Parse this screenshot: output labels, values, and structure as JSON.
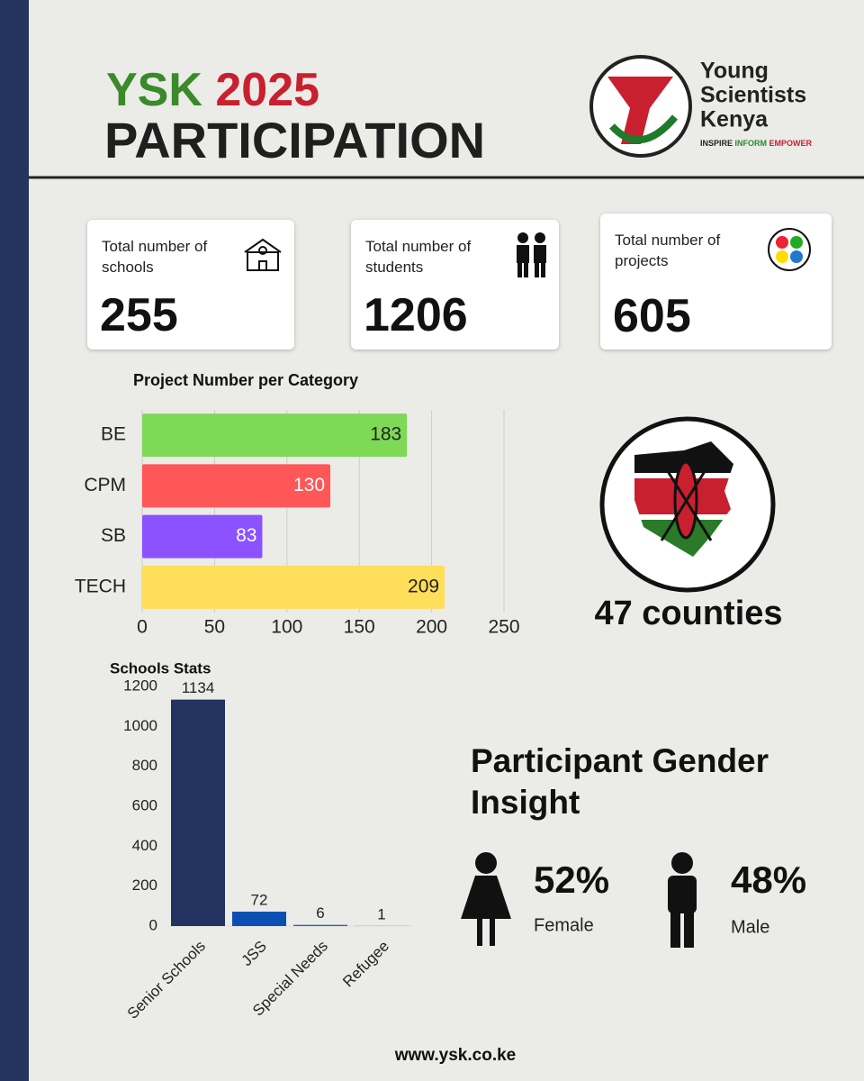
{
  "header": {
    "title_a": "YSK",
    "title_b": "2025",
    "title_c": "PARTICIPATION",
    "logo_line1": "Young",
    "logo_line2": "Scientists",
    "logo_line3": "Kenya",
    "tagline": [
      "INSPIRE",
      "INFORM",
      "EMPOWER"
    ]
  },
  "stats": [
    {
      "label": "Total number of schools",
      "value": 255
    },
    {
      "label": "Total number of students",
      "value": 1206
    },
    {
      "label": "Total number of projects",
      "value": 605
    }
  ],
  "chart_data": [
    {
      "type": "hbar",
      "title": "Project Number per Category",
      "categories": [
        "BE",
        "CPM",
        "SB",
        "TECH"
      ],
      "values": [
        183,
        130,
        83,
        209
      ],
      "colors": [
        "#7ed957",
        "#ff5757",
        "#8c52ff",
        "#ffde59"
      ],
      "xlim": [
        0,
        250
      ],
      "xticks": [
        0,
        50,
        100,
        150,
        200,
        250
      ],
      "grid": true
    },
    {
      "type": "bar",
      "title": "Schools Stats",
      "categories": [
        "Senior Schools",
        "JSS",
        "Special Needs",
        "Refugee"
      ],
      "values": [
        1134,
        72,
        6,
        1
      ],
      "colors": [
        "#22335f",
        "#0b4fb3",
        "#2c5ccf",
        "#6a8ae0"
      ],
      "ylim": [
        0,
        1200
      ],
      "yticks": [
        0,
        200,
        400,
        600,
        800,
        1000,
        1200
      ],
      "grid": false
    }
  ],
  "counties": "47 counties",
  "gender": {
    "title": "Participant Gender Insight",
    "items": [
      {
        "percent": "52%",
        "label": "Female"
      },
      {
        "percent": "48%",
        "label": "Male"
      }
    ]
  },
  "footer": "www.ysk.co.ke"
}
